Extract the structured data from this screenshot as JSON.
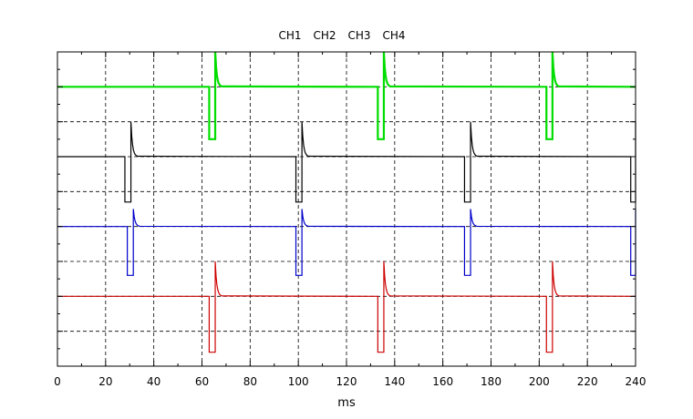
{
  "chart_data": {
    "type": "line",
    "title": "",
    "xlabel": "ms",
    "ylabel": "",
    "xlim": [
      0,
      240
    ],
    "ylim": [
      0,
      9
    ],
    "x_ticks": [
      0,
      20,
      40,
      60,
      80,
      100,
      120,
      140,
      160,
      180,
      200,
      220,
      240
    ],
    "y_ticks": [
      1,
      2,
      3,
      4,
      5,
      6,
      7,
      8
    ],
    "grid": true,
    "grid_style": "dashed",
    "legend": [
      "CH1",
      "CH2",
      "CH3",
      "CH4"
    ],
    "legend_placement": "top-center",
    "series": [
      {
        "name": "CH1",
        "color": "#00dd00",
        "baseline": 8,
        "low": 6.5,
        "peak": 9.0,
        "dip_start": [
          63,
          133,
          203
        ]
      },
      {
        "name": "CH2",
        "color": "#000000",
        "baseline": 6,
        "low": 4.7,
        "peak": 7.0,
        "dip_start": [
          28,
          99,
          169,
          238
        ]
      },
      {
        "name": "CH3",
        "color": "#0000cc",
        "baseline": 4,
        "low": 2.6,
        "peak": 4.5,
        "dip_start": [
          29,
          99,
          169,
          238
        ]
      },
      {
        "name": "CH4",
        "color": "#cc0000",
        "baseline": 2,
        "low": 0.4,
        "peak": 3.0,
        "dip_start": [
          63,
          133,
          203
        ]
      }
    ]
  }
}
